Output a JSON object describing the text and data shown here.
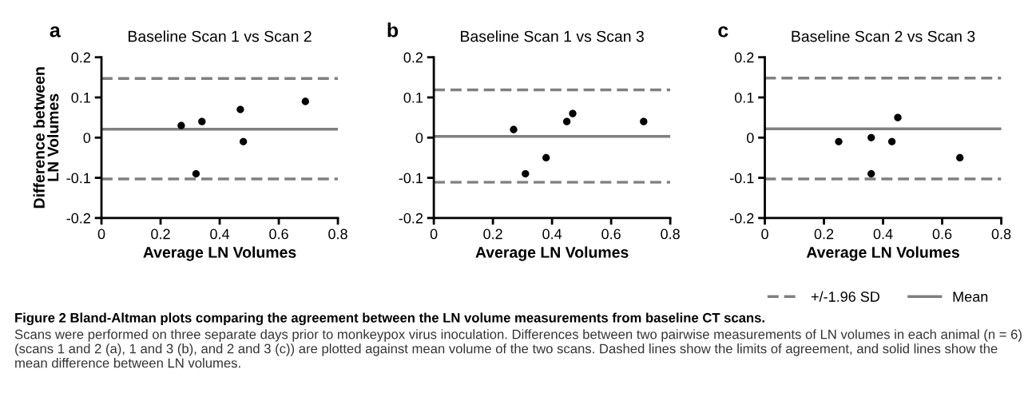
{
  "chart_data": [
    {
      "type": "scatter",
      "title": "Baseline Scan 1 vs Scan 2",
      "xlabel": "Average LN Volumes",
      "ylabel": "Difference between\nLN Volumes",
      "x": [
        0.27,
        0.34,
        0.32,
        0.47,
        0.48,
        0.69
      ],
      "values": [
        0.03,
        0.04,
        -0.09,
        0.07,
        -0.01,
        0.09
      ],
      "color": "#000000",
      "marker": "circle",
      "xlim": [
        0,
        0.8
      ],
      "ylim": [
        -0.2,
        0.2
      ],
      "xticks": [
        0,
        0.2,
        0.4,
        0.6,
        0.8
      ],
      "yticks": [
        -0.2,
        -0.1,
        0,
        0.1,
        0.2
      ],
      "grid": false,
      "ref_lines": [
        {
          "axis": "y",
          "value": 0.147,
          "color": "#808080",
          "line_style": "dashed"
        },
        {
          "axis": "y",
          "value": -0.103,
          "color": "#808080",
          "line_style": "dashed"
        },
        {
          "axis": "y",
          "value": 0.021,
          "color": "#808080",
          "line_style": "solid"
        }
      ],
      "annotations": [
        "a"
      ]
    },
    {
      "type": "scatter",
      "title": "Baseline Scan 1 vs Scan 3",
      "xlabel": "Average LN Volumes",
      "x": [
        0.27,
        0.31,
        0.38,
        0.45,
        0.47,
        0.71
      ],
      "values": [
        0.02,
        -0.09,
        -0.05,
        0.04,
        0.06,
        0.04
      ],
      "color": "#000000",
      "marker": "circle",
      "xlim": [
        0,
        0.8
      ],
      "ylim": [
        -0.2,
        0.2
      ],
      "xticks": [
        0,
        0.2,
        0.4,
        0.6,
        0.8
      ],
      "yticks": [
        -0.2,
        -0.1,
        0,
        0.1,
        0.2
      ],
      "grid": false,
      "ref_lines": [
        {
          "axis": "y",
          "value": 0.119,
          "color": "#808080",
          "line_style": "dashed"
        },
        {
          "axis": "y",
          "value": -0.111,
          "color": "#808080",
          "line_style": "dashed"
        },
        {
          "axis": "y",
          "value": 0.003,
          "color": "#808080",
          "line_style": "solid"
        }
      ],
      "annotations": [
        "b"
      ]
    },
    {
      "type": "scatter",
      "title": "Baseline Scan 2 vs Scan 3",
      "xlabel": "Average LN Volumes",
      "x": [
        0.25,
        0.36,
        0.36,
        0.43,
        0.45,
        0.66
      ],
      "values": [
        -0.01,
        0,
        -0.09,
        -0.01,
        0.05,
        -0.05
      ],
      "color": "#000000",
      "marker": "circle",
      "xlim": [
        0,
        0.8
      ],
      "ylim": [
        -0.2,
        0.2
      ],
      "xticks": [
        0,
        0.2,
        0.4,
        0.6,
        0.8
      ],
      "yticks": [
        -0.2,
        -0.1,
        0,
        0.1,
        0.2
      ],
      "grid": false,
      "ref_lines": [
        {
          "axis": "y",
          "value": 0.148,
          "color": "#808080",
          "line_style": "dashed",
          "label": "+/-1.96 SD"
        },
        {
          "axis": "y",
          "value": -0.103,
          "color": "#808080",
          "line_style": "dashed"
        },
        {
          "axis": "y",
          "value": 0.022,
          "color": "#808080",
          "line_style": "solid",
          "label": "Mean"
        }
      ],
      "legend": "bottom right",
      "annotations": [
        "c",
        "Figure 2 Bland-Altman plots comparing the agreement between the LN volume measurements from baseline CT scans.",
        "Scans were performed on three separate days prior to monkeypox virus inoculation. Differences between two pairwise measurements of LN volumes in each animal (n = 6) (scans 1 and 2 (a), 1 and 3 (b), and 2 and 3 (c)) are plotted against mean volume of the two scans. Dashed lines show the limits of agreement, and solid lines show the mean difference between LN volumes."
      ]
    }
  ]
}
